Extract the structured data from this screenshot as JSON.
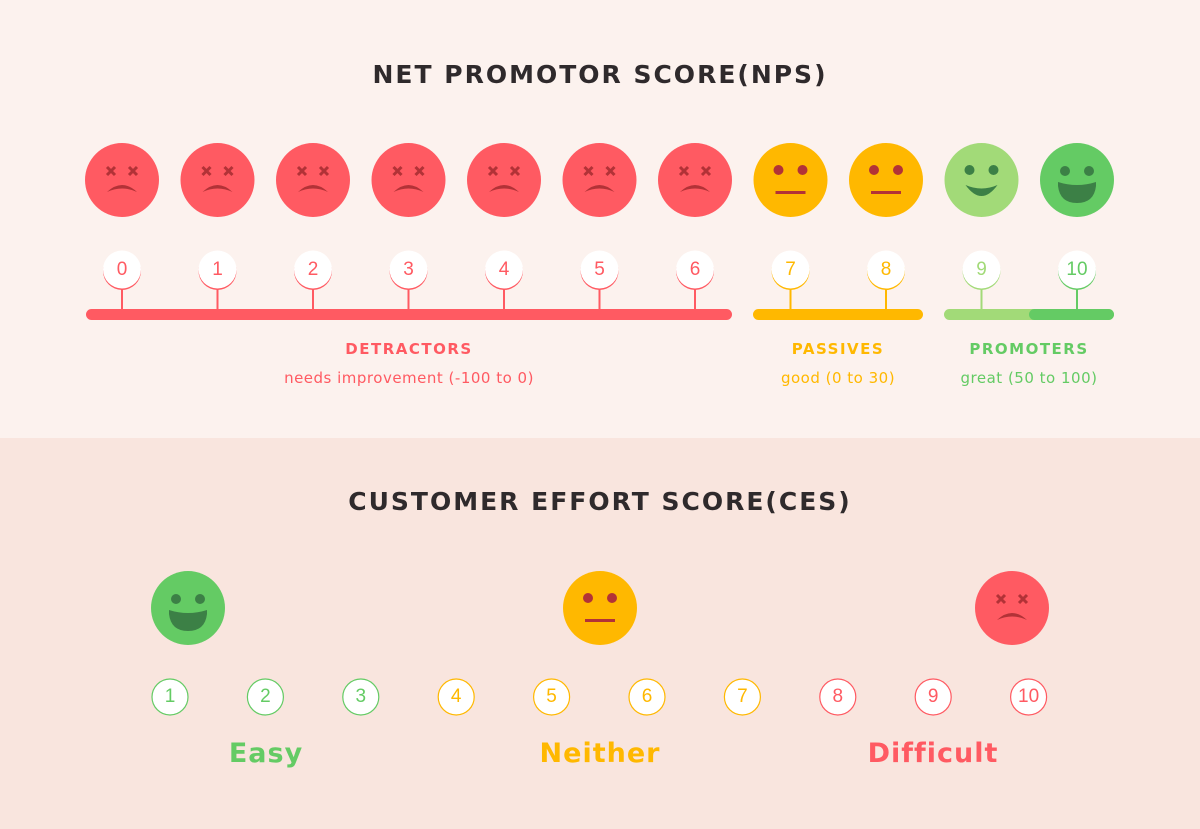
{
  "colors": {
    "red": "#FF5A62",
    "dark_red": "#B23237",
    "yellow": "#FFB800",
    "light_green": "#A2DA78",
    "green": "#64CB64",
    "dark_green": "#3C8046"
  },
  "nps": {
    "title": "NET PROMOTOR SCORE(NPS)",
    "scale": [
      {
        "value": "0",
        "face": "sad",
        "color": "red"
      },
      {
        "value": "1",
        "face": "sad",
        "color": "red"
      },
      {
        "value": "2",
        "face": "sad",
        "color": "red"
      },
      {
        "value": "3",
        "face": "sad",
        "color": "red"
      },
      {
        "value": "4",
        "face": "sad",
        "color": "red"
      },
      {
        "value": "5",
        "face": "sad",
        "color": "red"
      },
      {
        "value": "6",
        "face": "sad",
        "color": "red"
      },
      {
        "value": "7",
        "face": "neutral",
        "color": "yellow"
      },
      {
        "value": "8",
        "face": "neutral",
        "color": "yellow"
      },
      {
        "value": "9",
        "face": "smile",
        "color": "light_green"
      },
      {
        "value": "10",
        "face": "grin",
        "color": "green"
      }
    ],
    "groups": [
      {
        "name": "DETRACTORS",
        "desc": "needs improvement (-100 to 0)",
        "color": "red"
      },
      {
        "name": "PASSIVES",
        "desc": "good (0 to 30)",
        "color": "yellow"
      },
      {
        "name": "PROMOTERS",
        "desc": "great (50 to 100)",
        "color": "light_green"
      }
    ]
  },
  "ces": {
    "title": "CUSTOMER EFFORT SCORE(CES)",
    "scale": [
      {
        "value": "1",
        "color": "green"
      },
      {
        "value": "2",
        "color": "green"
      },
      {
        "value": "3",
        "color": "green"
      },
      {
        "value": "4",
        "color": "yellow"
      },
      {
        "value": "5",
        "color": "yellow"
      },
      {
        "value": "6",
        "color": "yellow"
      },
      {
        "value": "7",
        "color": "yellow"
      },
      {
        "value": "8",
        "color": "red"
      },
      {
        "value": "9",
        "color": "red"
      },
      {
        "value": "10",
        "color": "red"
      }
    ],
    "groups": [
      {
        "name": "Easy",
        "face": "grin",
        "color": "green"
      },
      {
        "name": "Neither",
        "face": "neutral",
        "color": "yellow"
      },
      {
        "name": "Difficult",
        "face": "sad",
        "color": "red"
      }
    ]
  }
}
